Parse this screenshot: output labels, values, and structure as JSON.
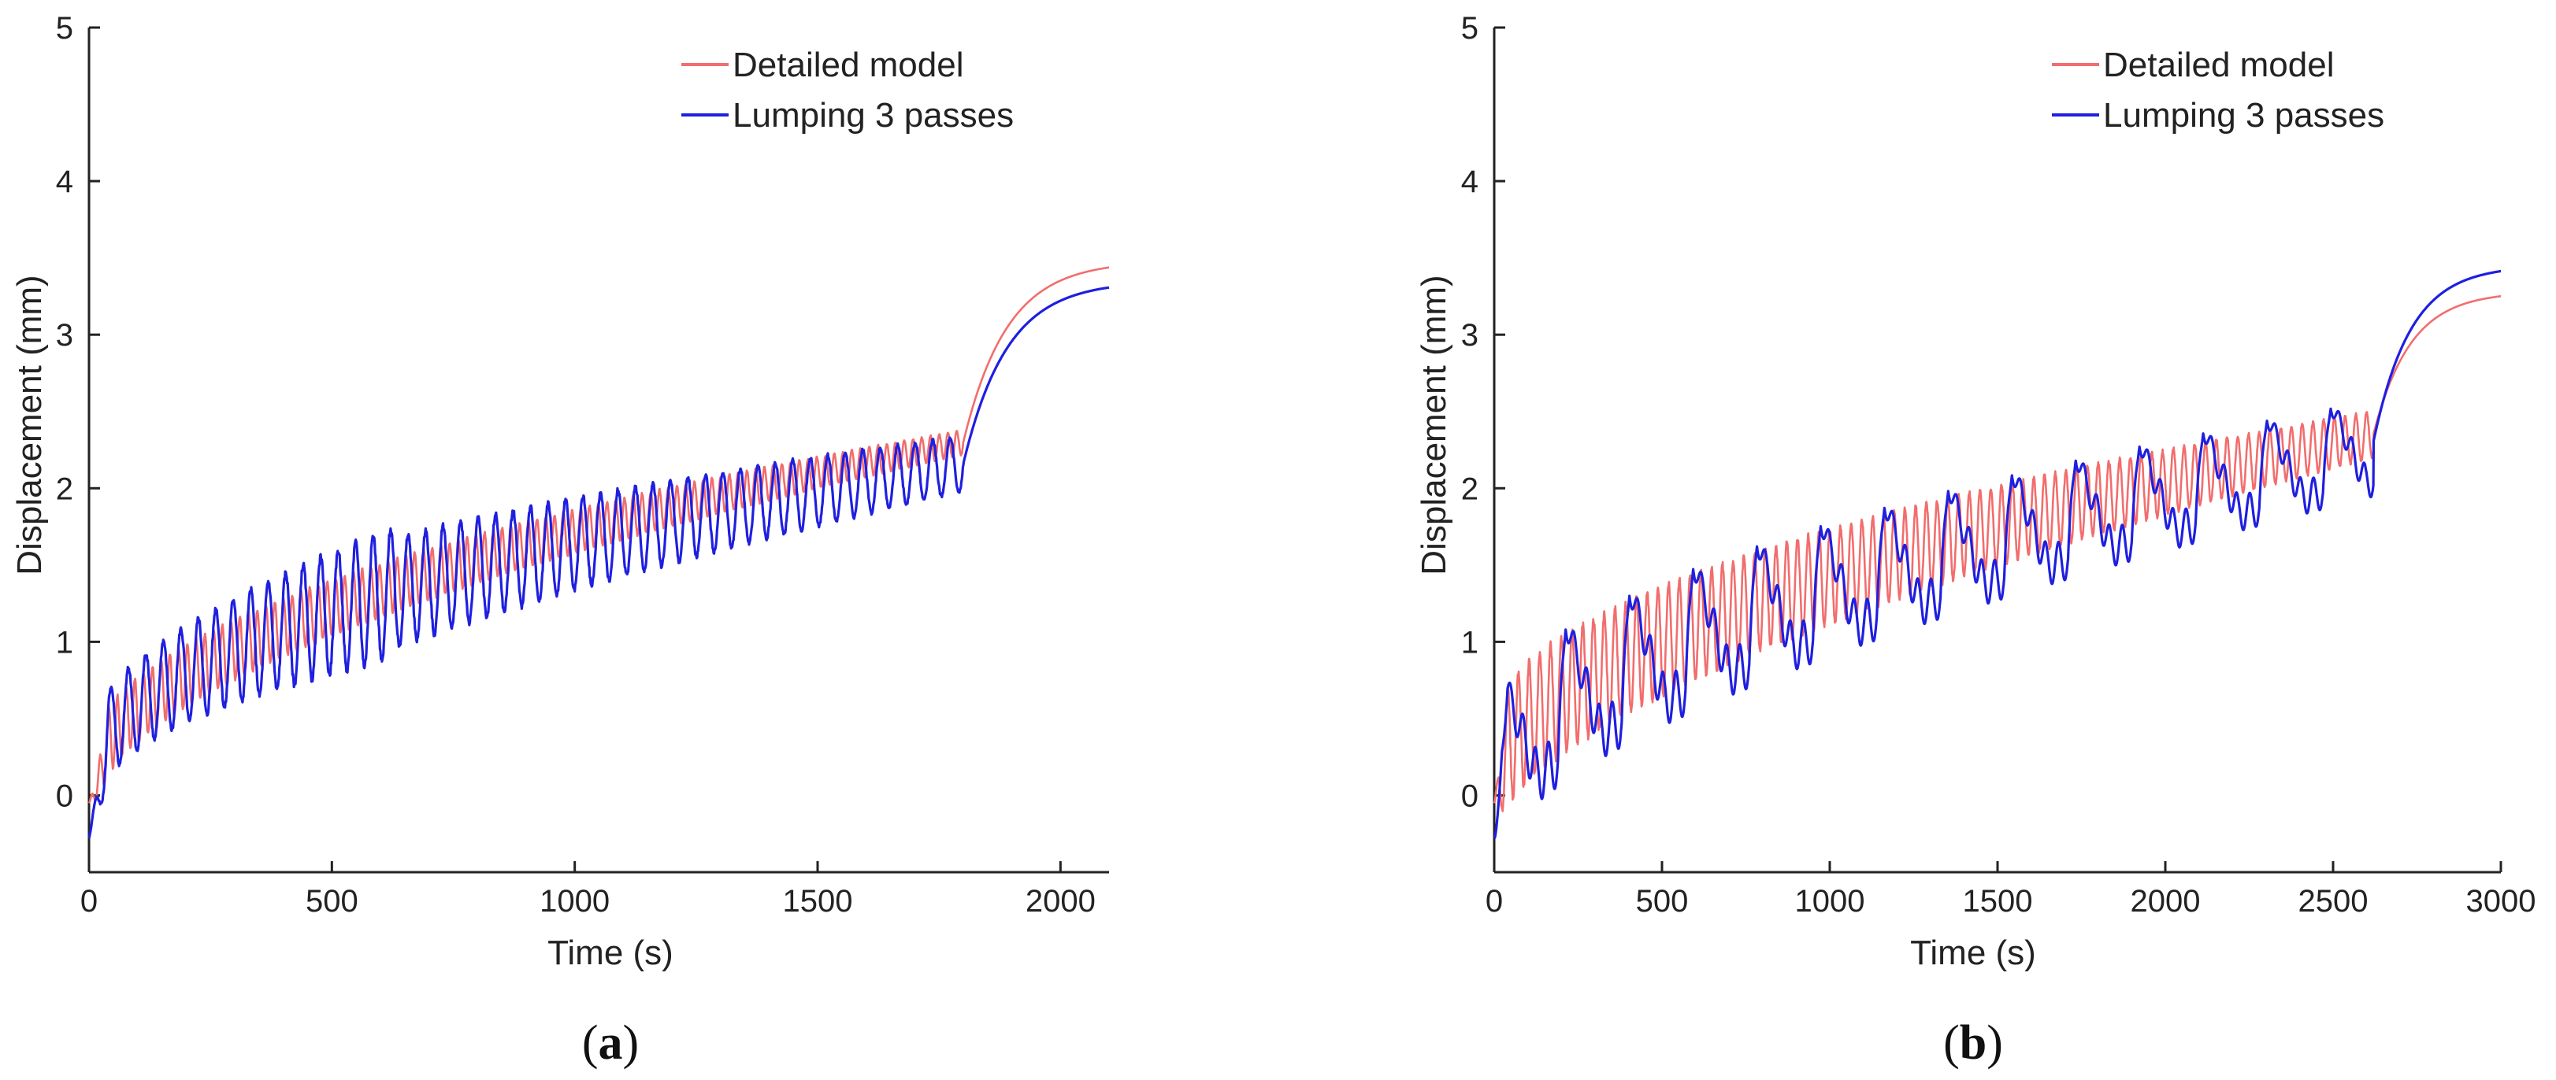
{
  "chart_data": [
    {
      "type": "line",
      "panel_label": "a",
      "caption_open": "(",
      "caption_close": ")",
      "xlabel": "Time (s)",
      "ylabel": "Displacement (mm)",
      "xlim": [
        0,
        2100
      ],
      "ylim": [
        -0.5,
        5
      ],
      "xticks": [
        0,
        500,
        1000,
        1500,
        2000
      ],
      "yticks": [
        0,
        1,
        2,
        3,
        4,
        5
      ],
      "legend_position": "top-right",
      "series": [
        {
          "name": "Detailed model",
          "color": "#f26d6d",
          "model": {
            "t_end": 1800,
            "base_start": 0.02,
            "base_end": 2.3,
            "curve": 0.5,
            "period": 18,
            "amp_start": 0.22,
            "amp_end": 0.08,
            "final": 3.48,
            "tau": 90,
            "initial_dip": -0.05
          }
        },
        {
          "name": "Lumping 3 passes",
          "color": "#1f1fe0",
          "model": {
            "t_end": 1800,
            "base_start": 0.1,
            "base_end": 2.16,
            "curve": 0.5,
            "period": 36,
            "amp_start": 0.45,
            "amp_end": 0.18,
            "amp_peak": 0.45,
            "final": 3.35,
            "tau": 90,
            "initial_dip": -0.28
          }
        }
      ]
    },
    {
      "type": "line",
      "panel_label": "b",
      "caption_open": "(",
      "caption_close": ")",
      "xlabel": "Time (s)",
      "ylabel": "Displacement (mm)",
      "xlim": [
        0,
        3000
      ],
      "ylim": [
        -0.5,
        5
      ],
      "xticks": [
        0,
        500,
        1000,
        1500,
        2000,
        2500,
        3000
      ],
      "yticks": [
        0,
        1,
        2,
        3,
        4,
        5
      ],
      "legend_position": "top-right",
      "series": [
        {
          "name": "Detailed model",
          "color": "#f26d6d",
          "model": {
            "t_end": 2620,
            "base_start": 0.1,
            "base_end": 2.35,
            "curve": 0.55,
            "period": 32,
            "amp_start": 0.4,
            "amp_end": 0.15,
            "final": 3.28,
            "tau": 110,
            "initial_dip": -0.05
          }
        },
        {
          "name": "Lumping 3 passes",
          "color": "#1f1fe0",
          "model": {
            "t_end": 2620,
            "base_start": 0.1,
            "base_end": 2.3,
            "curve": 0.55,
            "period": 190,
            "amp_start": 0.9,
            "amp_end": 0.55,
            "final": 3.45,
            "tau": 110,
            "initial_dip": -0.28,
            "inner_period": 38
          }
        }
      ]
    }
  ]
}
